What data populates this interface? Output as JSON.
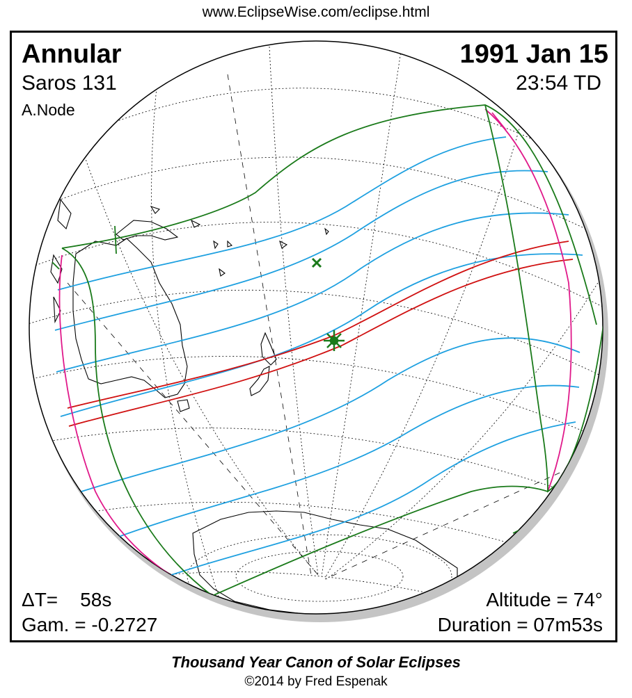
{
  "header": {
    "url": "www.EclipseWise.com/eclipse.html"
  },
  "eclipse": {
    "type": "Annular",
    "date": "1991 Jan 15",
    "saros": "Saros 131",
    "time": "23:54 TD",
    "node": "A.Node",
    "delta_t_label": "ΔT=",
    "delta_t_value": "58s",
    "gamma": "Gam. = -0.2727",
    "altitude": "Altitude = 74°",
    "duration": "Duration = 07m53s"
  },
  "footer": {
    "title": "Thousand Year Canon of Solar Eclipses",
    "copyright": "©2014 by Fred Espenak"
  },
  "colors": {
    "central_path": "#d01010",
    "magnitude_curves": "#1ea0e0",
    "penumbra_limits": "#1a7a1a",
    "rise_set_curves": "#e0198a",
    "grid": "#000000",
    "coastline": "#000000",
    "globe_shadow": "#b8b8b8"
  },
  "markers": {
    "greatest_eclipse": "asterisk-icon",
    "greatest_duration": "x-mark-icon"
  }
}
